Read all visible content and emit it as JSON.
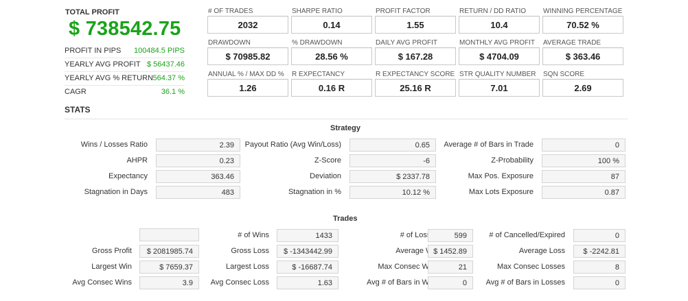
{
  "summary": {
    "total_profit_label": "TOTAL PROFIT",
    "total_profit_value": "$ 738542.75",
    "items": [
      {
        "label": "PROFIT IN PIPS",
        "value": "100484.5 PIPS"
      },
      {
        "label": "YEARLY AVG PROFIT",
        "value": "$ 56437.46"
      },
      {
        "label": "YEARLY AVG % RETURN",
        "value": "564.37 %"
      },
      {
        "label": "CAGR",
        "value": "36.1 %"
      }
    ]
  },
  "metrics": [
    {
      "label": "# OF TRADES",
      "value": "2032"
    },
    {
      "label": "SHARPE RATIO",
      "value": "0.14"
    },
    {
      "label": "PROFIT FACTOR",
      "value": "1.55"
    },
    {
      "label": "RETURN / DD RATIO",
      "value": "10.4"
    },
    {
      "label": "WINNING PERCENTAGE",
      "value": "70.52 %"
    },
    {
      "label": "DRAWDOWN",
      "value": "$ 70985.82"
    },
    {
      "label": "% DRAWDOWN",
      "value": "28.56 %"
    },
    {
      "label": "DAILY AVG PROFIT",
      "value": "$ 167.28"
    },
    {
      "label": "MONTHLY AVG PROFIT",
      "value": "$ 4704.09"
    },
    {
      "label": "AVERAGE TRADE",
      "value": "$ 363.46"
    },
    {
      "label": "ANNUAL % / MAX DD %",
      "value": "1.26"
    },
    {
      "label": "R EXPECTANCY",
      "value": "0.16 R"
    },
    {
      "label": "R EXPECTANCY SCORE",
      "value": "25.16 R"
    },
    {
      "label": "STR QUALITY NUMBER",
      "value": "7.01"
    },
    {
      "label": "SQN SCORE",
      "value": "2.69"
    }
  ],
  "stats_title": "STATS",
  "strategy": {
    "title": "Strategy",
    "col1": [
      {
        "label": "Wins / Losses Ratio",
        "value": "2.39"
      },
      {
        "label": "AHPR",
        "value": "0.23"
      },
      {
        "label": "Expectancy",
        "value": "363.46"
      },
      {
        "label": "Stagnation in Days",
        "value": "483"
      }
    ],
    "col2": [
      {
        "label": "Payout Ratio (Avg Win/Loss)",
        "value": "0.65"
      },
      {
        "label": "Z-Score",
        "value": "-6"
      },
      {
        "label": "Deviation",
        "value": "$ 2337.78"
      },
      {
        "label": "Stagnation in %",
        "value": "10.12 %"
      }
    ],
    "col3": [
      {
        "label": "Average # of Bars in Trade",
        "value": "0"
      },
      {
        "label": "Z-Probability",
        "value": "100 %"
      },
      {
        "label": "Max Pos. Exposure",
        "value": "87"
      },
      {
        "label": "Max Lots Exposure",
        "value": "0.87"
      }
    ]
  },
  "trades": {
    "title": "Trades",
    "col1": [
      {
        "label": "",
        "value": ""
      },
      {
        "label": "Gross Profit",
        "value": "$ 2081985.74"
      },
      {
        "label": "Largest Win",
        "value": "$ 7659.37"
      },
      {
        "label": "Avg Consec Wins",
        "value": "3.9"
      }
    ],
    "col2": [
      {
        "label": "# of Wins",
        "value": "1433"
      },
      {
        "label": "Gross Loss",
        "value": "$ -1343442.99"
      },
      {
        "label": "Largest Loss",
        "value": "$ -16687.74"
      },
      {
        "label": "Avg Consec Loss",
        "value": "1.63"
      }
    ],
    "col3": [
      {
        "label": "# of Losses",
        "value": "599"
      },
      {
        "label": "Average Win",
        "value": "$ 1452.89"
      },
      {
        "label": "Max Consec Wins",
        "value": "21"
      },
      {
        "label": "Avg # of Bars in Wins",
        "value": "0"
      }
    ],
    "col4": [
      {
        "label": "# of Cancelled/Expired",
        "value": "0"
      },
      {
        "label": "Average Loss",
        "value": "$ -2242.81"
      },
      {
        "label": "Max Consec Losses",
        "value": "8"
      },
      {
        "label": "Avg # of Bars in Losses",
        "value": "0"
      }
    ]
  },
  "colors": {
    "profit_green": "#1aa31a"
  }
}
